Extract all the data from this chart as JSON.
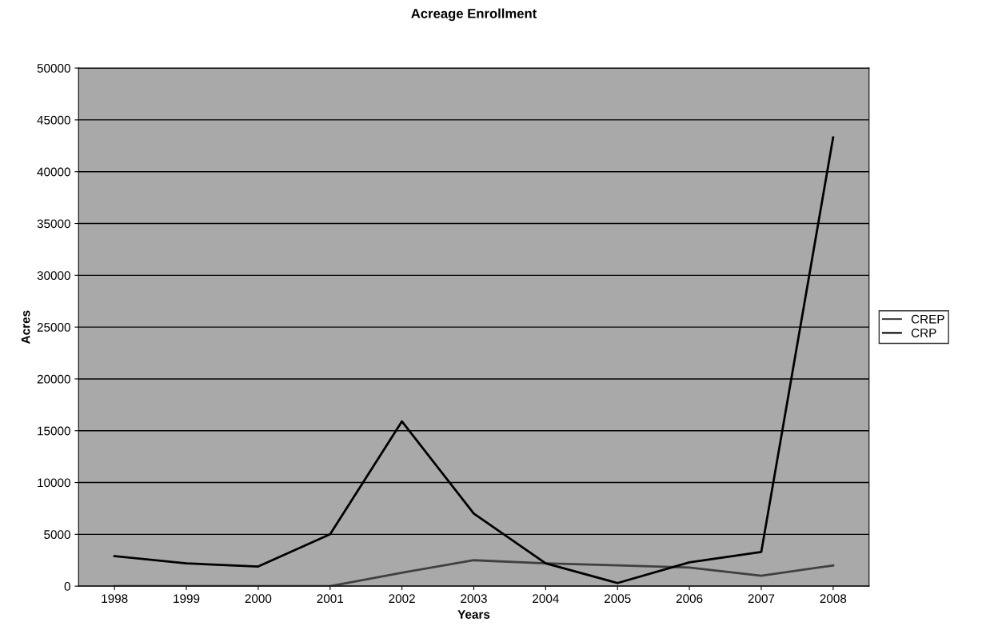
{
  "chart_data": {
    "type": "line",
    "title": "Acreage Enrollment",
    "xlabel": "Years",
    "ylabel": "Acres",
    "categories": [
      "1998",
      "1999",
      "2000",
      "2001",
      "2002",
      "2003",
      "2004",
      "2005",
      "2006",
      "2007",
      "2008"
    ],
    "series": [
      {
        "name": "CREP",
        "color": "#404040",
        "values": [
          0,
          0,
          0,
          0,
          1300,
          2500,
          2200,
          2000,
          1800,
          1000,
          2000
        ]
      },
      {
        "name": "CRP",
        "color": "#000000",
        "values": [
          2900,
          2200,
          1900,
          5000,
          15900,
          7000,
          2200,
          300,
          2300,
          3300,
          43300
        ]
      }
    ],
    "ylim": [
      0,
      50000
    ],
    "yticks": [
      0,
      5000,
      10000,
      15000,
      20000,
      25000,
      30000,
      35000,
      40000,
      45000,
      50000
    ],
    "grid": "y",
    "legend": "right",
    "marker": "none",
    "line_style": "solid"
  }
}
